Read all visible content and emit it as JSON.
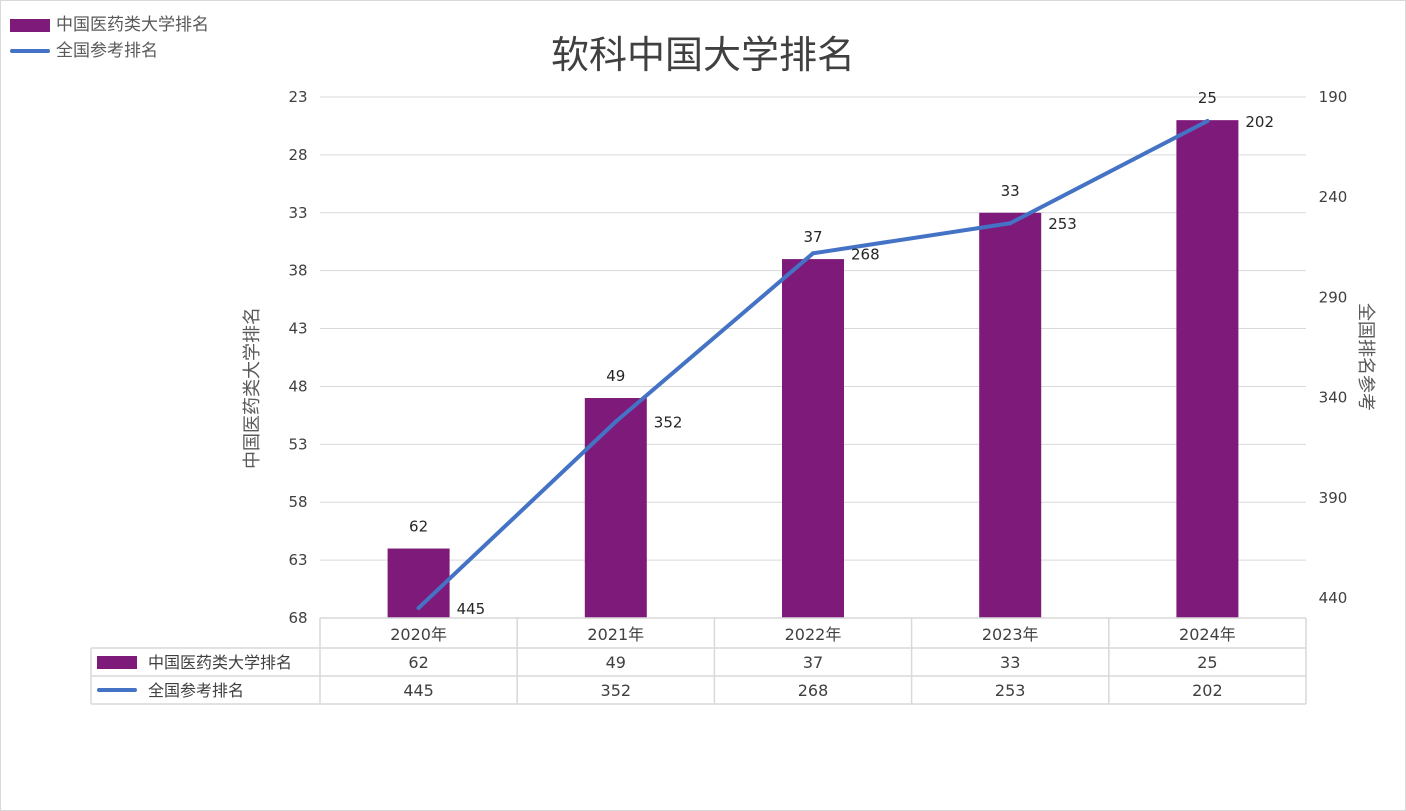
{
  "legend": {
    "bar_label": "中国医药类大学排名",
    "line_label": "全国参考排名"
  },
  "colors": {
    "bar": "#7e1a7a",
    "line": "#4472c4",
    "grid": "#d9d9d9",
    "text": "#404040"
  },
  "chart_data": {
    "type": "bar",
    "title": "软科中国大学排名",
    "categories": [
      "2020年",
      "2021年",
      "2022年",
      "2023年",
      "2024年"
    ],
    "series": [
      {
        "name": "中国医药类大学排名",
        "type": "bar",
        "axis": "left",
        "values": [
          62,
          49,
          37,
          33,
          25
        ]
      },
      {
        "name": "全国参考排名",
        "type": "line",
        "axis": "right",
        "values": [
          445,
          352,
          268,
          253,
          202
        ]
      }
    ],
    "y_left": {
      "label": "中国医药类大学排名",
      "range": [
        23,
        68
      ],
      "ticks": [
        23,
        28,
        33,
        38,
        43,
        48,
        53,
        58,
        63,
        68
      ],
      "reversed": true
    },
    "y_right": {
      "label": "全国排名参考",
      "range": [
        190,
        450
      ],
      "ticks": [
        190,
        240,
        290,
        340,
        390,
        440
      ],
      "reversed": true
    },
    "grid": true,
    "legend_position": "top-left",
    "data_table": true
  }
}
